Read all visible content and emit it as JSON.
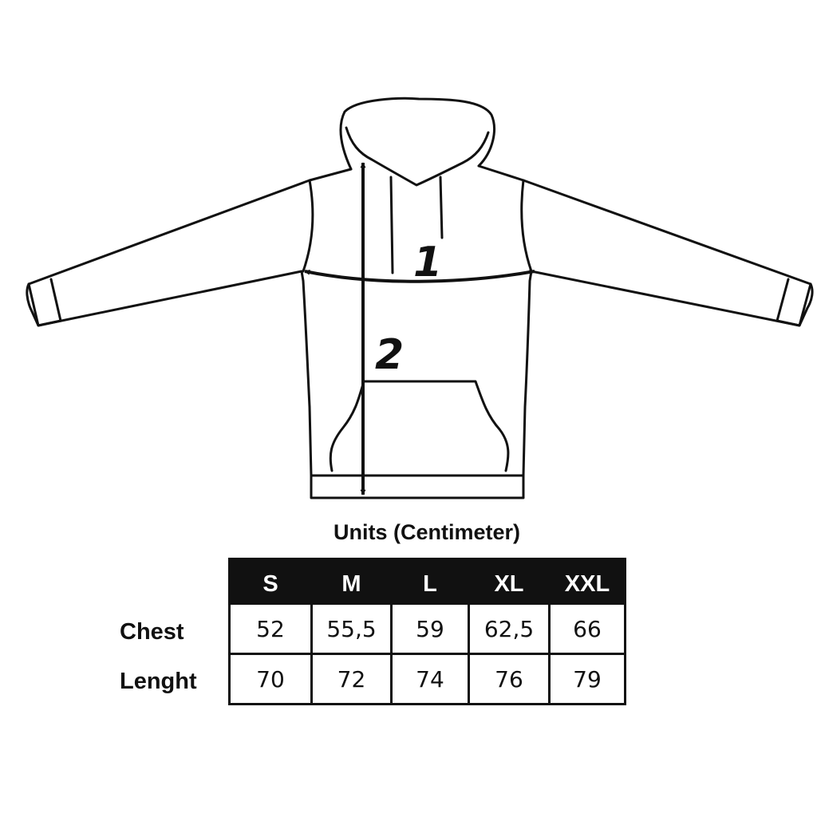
{
  "diagram": {
    "markers": {
      "chest": "1",
      "length": "2"
    }
  },
  "units_title": "Units (Centimeter)",
  "table": {
    "sizes": [
      "S",
      "M",
      "L",
      "XL",
      "XXL"
    ],
    "rows": [
      {
        "label": "Chest",
        "values": [
          "52",
          "55,5",
          "59",
          "62,5",
          "66"
        ]
      },
      {
        "label": "Lenght",
        "values": [
          "70",
          "72",
          "74",
          "76",
          "79"
        ]
      }
    ]
  },
  "colors": {
    "ink": "#111111",
    "background": "#ffffff"
  }
}
